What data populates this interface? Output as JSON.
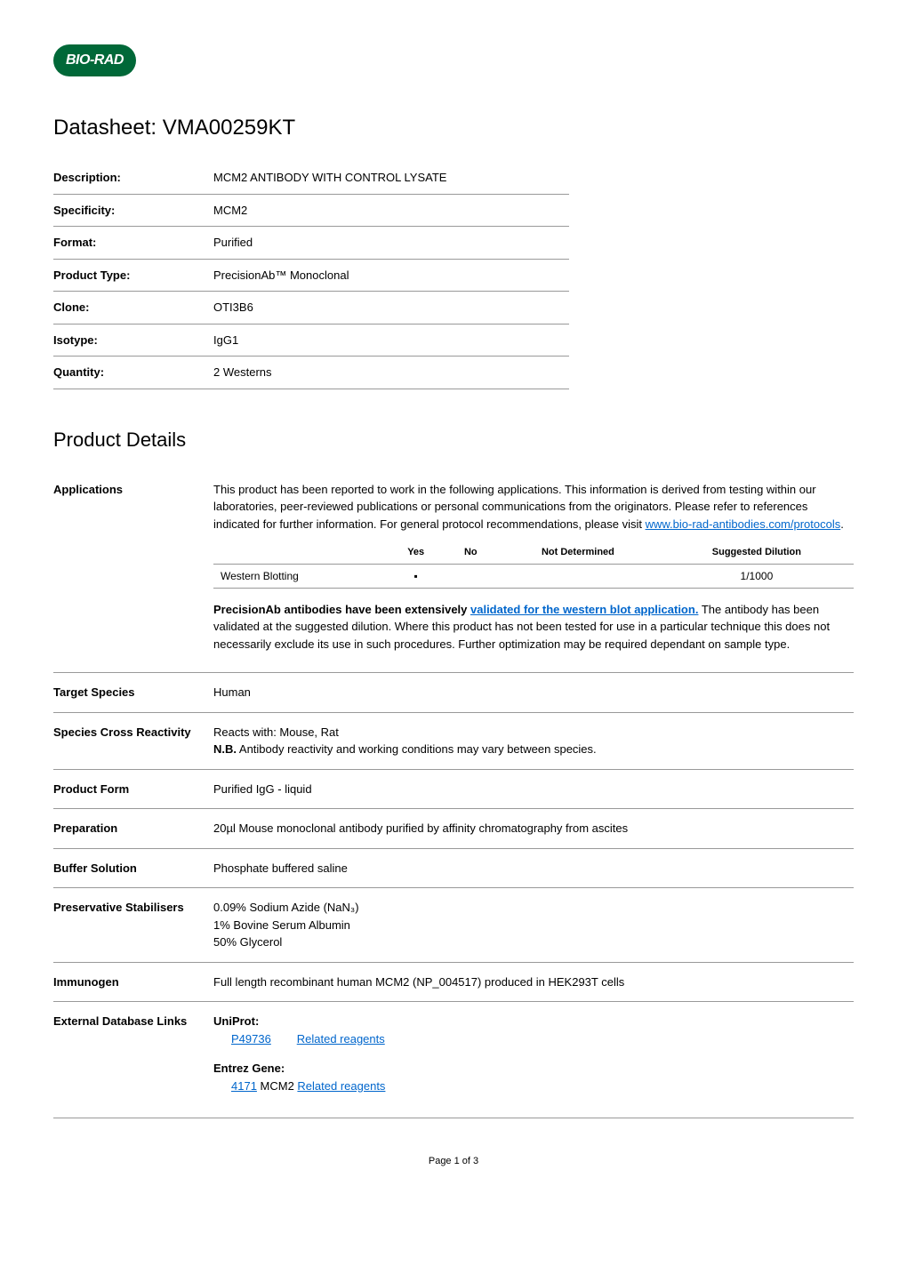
{
  "logo": {
    "text": "BIO-RAD",
    "bg_color": "#006838",
    "text_color": "#ffffff"
  },
  "title": "Datasheet: VMA00259KT",
  "info_rows": [
    {
      "label": "Description:",
      "value": "MCM2 ANTIBODY WITH CONTROL LYSATE"
    },
    {
      "label": "Specificity:",
      "value": "MCM2"
    },
    {
      "label": "Format:",
      "value": "Purified"
    },
    {
      "label": "Product Type:",
      "value": "PrecisionAb™ Monoclonal"
    },
    {
      "label": "Clone:",
      "value": "OTI3B6"
    },
    {
      "label": "Isotype:",
      "value": "IgG1"
    },
    {
      "label": "Quantity:",
      "value": "2 Westerns"
    }
  ],
  "section_title": "Product Details",
  "applications": {
    "label": "Applications",
    "intro": "This product has been reported to work in the following applications. This information is derived from testing within our laboratories, peer-reviewed publications or personal communications from the originators. Please refer to references indicated for further information. For general protocol recommendations, please visit ",
    "intro_link": "www.bio-rad-antibodies.com/protocols",
    "table": {
      "headers": [
        "",
        "Yes",
        "No",
        "Not Determined",
        "Suggested Dilution"
      ],
      "rows": [
        {
          "name": "Western Blotting",
          "yes": "▪",
          "no": "",
          "not_determined": "",
          "dilution": "1/1000"
        }
      ]
    },
    "note_bold": "PrecisionAb antibodies have been extensively ",
    "note_link": "validated for the western blot application.",
    "note_rest": " The antibody has been validated at the suggested dilution. Where this product has not been tested for use in a particular technique this does not necessarily exclude its use in such procedures. Further optimization may be required dependant on sample type."
  },
  "details": [
    {
      "label": "Target Species",
      "value": "Human"
    },
    {
      "label": "Species Cross Reactivity",
      "value_pre": "Reacts with: Mouse, Rat",
      "nb_label": "N.B.",
      "nb_text": " Antibody reactivity and working conditions may vary between species."
    },
    {
      "label": "Product Form",
      "value": "Purified IgG - liquid"
    },
    {
      "label": "Preparation",
      "value": "20µl Mouse monoclonal antibody purified by affinity chromatography from ascites"
    },
    {
      "label": "Buffer Solution",
      "value": "Phosphate buffered saline"
    },
    {
      "label": "Preservative Stabilisers",
      "lines": [
        "0.09% Sodium Azide (NaN₃)",
        "1% Bovine Serum Albumin",
        "50% Glycerol"
      ]
    },
    {
      "label": "Immunogen",
      "value": "Full length recombinant human MCM2 (NP_004517) produced in HEK293T cells"
    }
  ],
  "external_db": {
    "label": "External Database Links",
    "sections": [
      {
        "header": "UniProt:",
        "id": "P49736",
        "name": "",
        "related": "Related reagents"
      },
      {
        "header": "Entrez Gene:",
        "id": "4171",
        "name": "MCM2",
        "related": "Related reagents"
      }
    ]
  },
  "footer": "Page 1 of 3",
  "colors": {
    "link": "#0066cc",
    "border": "#999999",
    "text": "#000000",
    "bg": "#ffffff"
  }
}
